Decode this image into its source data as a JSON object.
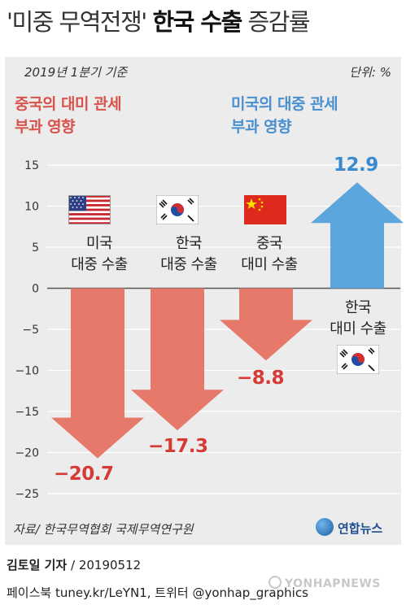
{
  "title": {
    "prefix": "'미중 무역전쟁'",
    "bold": "한국 수출",
    "suffix": "증감률"
  },
  "subtitle": "2019년 1분기 기준",
  "unit": "단위: %",
  "groups": {
    "left": {
      "line1": "중국의 대미 관세",
      "line2": "부과 영향",
      "color": "#d9534b"
    },
    "right": {
      "line1": "미국의 대중 관세",
      "line2": "부과 영향",
      "color": "#4a8fd0"
    }
  },
  "chart_data": {
    "type": "bar",
    "title": "'미중 무역전쟁' 한국 수출 증감률",
    "ylim": [
      -25,
      15
    ],
    "yticks": [
      15,
      10,
      5,
      0,
      -5,
      -10,
      -15,
      -20,
      -25
    ],
    "grid": true,
    "categories": [
      {
        "line1": "미국",
        "line2": "대중 수출",
        "flag": "us-flag-icon"
      },
      {
        "line1": "한국",
        "line2": "대중 수출",
        "flag": "korea-flag-icon"
      },
      {
        "line1": "중국",
        "line2": "대미 수출",
        "flag": "china-flag-icon"
      },
      {
        "line1": "한국",
        "line2": "대미 수출",
        "flag": "korea-flag-icon"
      }
    ],
    "values": [
      -20.7,
      -17.3,
      -8.8,
      12.9
    ],
    "value_labels": [
      "−20.7",
      "−17.3",
      "−8.8",
      "12.9"
    ],
    "colors": {
      "negative": "#e7796b",
      "positive": "#5aa6dd"
    }
  },
  "source": "자료/ 한국무역협회 국제무역연구원",
  "logo": "연합뉴스",
  "reporter": {
    "name": "김토일 기자",
    "date": "/ 20190512"
  },
  "social": "페이스북 tuney.kr/LeYN1, 트위터 @yonhap_graphics",
  "watermark": "YONHAPNEWS"
}
